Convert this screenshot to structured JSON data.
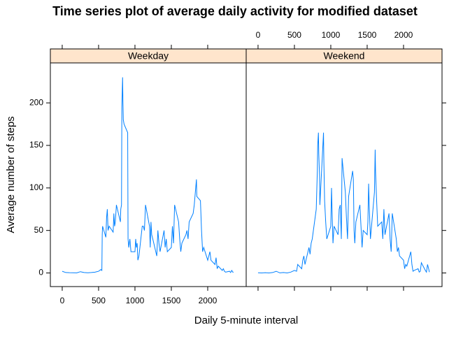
{
  "title": "Time series plot of average daily activity for modified dataset",
  "x_label": "Daily 5-minute interval",
  "y_label": "Average number of steps",
  "chart_data": [
    {
      "type": "line",
      "title": "Weekday",
      "color": "#0080ff",
      "xlim": [
        -163,
        2529
      ],
      "ylim": [
        -16,
        247
      ],
      "xticks": [
        0,
        500,
        1000,
        1500,
        2000
      ],
      "yticks": [
        0,
        50,
        100,
        150,
        200
      ],
      "x": [
        0,
        50,
        100,
        150,
        200,
        250,
        300,
        350,
        400,
        450,
        500,
        530,
        545,
        550,
        555,
        600,
        610,
        620,
        630,
        645,
        700,
        710,
        720,
        730,
        745,
        800,
        805,
        815,
        820,
        830,
        835,
        840,
        850,
        900,
        905,
        915,
        930,
        945,
        1000,
        1010,
        1020,
        1030,
        1040,
        1055,
        1100,
        1115,
        1130,
        1145,
        1200,
        1210,
        1220,
        1230,
        1245,
        1300,
        1315,
        1330,
        1345,
        1400,
        1415,
        1430,
        1445,
        1500,
        1515,
        1530,
        1545,
        1600,
        1615,
        1630,
        1645,
        1700,
        1715,
        1730,
        1745,
        1800,
        1815,
        1830,
        1845,
        1850,
        1900,
        1915,
        1930,
        1945,
        2000,
        2015,
        2030,
        2045,
        2100,
        2115,
        2130,
        2145,
        2200,
        2215,
        2230,
        2245,
        2300,
        2315,
        2330,
        2345,
        2355
      ],
      "values": [
        2,
        0.5,
        0.3,
        0.2,
        0.1,
        1.5,
        0.5,
        0.2,
        0.5,
        1,
        2,
        4,
        3,
        45,
        55,
        42,
        65,
        75,
        50,
        55,
        48,
        70,
        55,
        60,
        80,
        60,
        75,
        80,
        195,
        230,
        200,
        180,
        175,
        165,
        40,
        30,
        40,
        25,
        25,
        40,
        30,
        35,
        15,
        20,
        55,
        55,
        50,
        80,
        55,
        30,
        60,
        45,
        40,
        20,
        50,
        35,
        25,
        50,
        30,
        40,
        25,
        30,
        55,
        35,
        80,
        60,
        40,
        25,
        35,
        45,
        50,
        40,
        60,
        70,
        80,
        95,
        110,
        90,
        85,
        50,
        25,
        30,
        15,
        20,
        25,
        15,
        10,
        18,
        5,
        8,
        3,
        5,
        2,
        1,
        2,
        0.5,
        3,
        1,
        1
      ]
    },
    {
      "type": "line",
      "title": "Weekend",
      "color": "#0080ff",
      "xlim": [
        -163,
        2529
      ],
      "ylim": [
        -16,
        247
      ],
      "xticks": [
        0,
        500,
        1000,
        1500,
        2000
      ],
      "yticks": [
        0,
        50,
        100,
        150,
        200
      ],
      "x": [
        0,
        50,
        100,
        150,
        200,
        250,
        300,
        350,
        400,
        450,
        500,
        530,
        545,
        600,
        615,
        630,
        645,
        700,
        715,
        730,
        745,
        800,
        805,
        815,
        820,
        830,
        835,
        845,
        850,
        900,
        905,
        915,
        930,
        945,
        1000,
        1010,
        1020,
        1030,
        1045,
        1100,
        1115,
        1130,
        1145,
        1155,
        1200,
        1215,
        1230,
        1245,
        1300,
        1310,
        1320,
        1330,
        1345,
        1400,
        1415,
        1430,
        1445,
        1500,
        1510,
        1520,
        1530,
        1545,
        1600,
        1610,
        1615,
        1630,
        1645,
        1700,
        1715,
        1730,
        1745,
        1800,
        1815,
        1830,
        1845,
        1900,
        1915,
        1930,
        1945,
        2000,
        2015,
        2030,
        2045,
        2100,
        2115,
        2130,
        2145,
        2200,
        2215,
        2230,
        2245,
        2300,
        2315,
        2330,
        2345,
        2355
      ],
      "values": [
        0.2,
        0,
        0.3,
        0,
        0.5,
        2,
        0.1,
        0.5,
        0,
        1,
        3,
        2,
        10,
        5,
        15,
        20,
        10,
        30,
        22,
        35,
        40,
        75,
        90,
        120,
        150,
        165,
        140,
        115,
        80,
        165,
        130,
        85,
        60,
        40,
        55,
        100,
        65,
        35,
        55,
        45,
        75,
        80,
        40,
        135,
        95,
        65,
        40,
        90,
        120,
        110,
        50,
        35,
        60,
        80,
        55,
        30,
        50,
        45,
        60,
        105,
        75,
        40,
        95,
        145,
        120,
        85,
        55,
        60,
        40,
        75,
        45,
        70,
        40,
        25,
        70,
        40,
        25,
        30,
        20,
        15,
        5,
        10,
        8,
        25,
        10,
        2,
        3,
        5,
        1,
        2,
        12,
        3,
        1,
        10,
        5,
        1
      ]
    }
  ]
}
